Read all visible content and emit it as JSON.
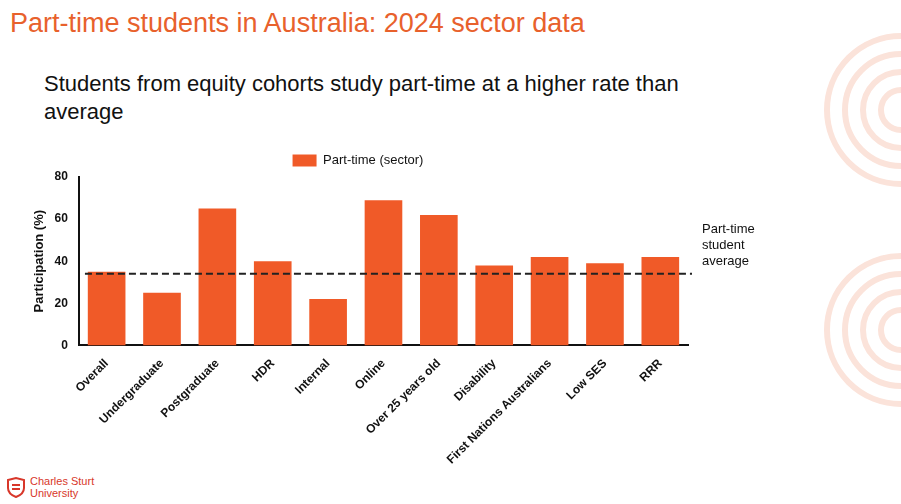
{
  "chart_data": {
    "type": "bar",
    "title": "Part-time students in Australia: 2024 sector data",
    "subtitle": "Students from equity cohorts study part-time at a higher rate than average",
    "categories": [
      "Overall",
      "Undergraduate",
      "Postgraduate",
      "HDR",
      "Internal",
      "Online",
      "Over 25 years old",
      "Disability",
      "First Nations Australians",
      "Low SES",
      "RRR"
    ],
    "series": [
      {
        "name": "Part-time (sector)",
        "color": "#f05a28",
        "values": [
          35,
          25,
          65,
          40,
          22,
          69,
          62,
          38,
          42,
          39,
          42
        ]
      }
    ],
    "y_label": "Participation (%)",
    "ylim": [
      0,
      80
    ],
    "yticks": [
      0,
      20,
      40,
      60,
      80
    ],
    "grid": false,
    "legend": "top",
    "reference_line": {
      "value": 34,
      "label": "Part-time student average"
    }
  },
  "footer": {
    "logo_text": "Charles Sturt University"
  }
}
